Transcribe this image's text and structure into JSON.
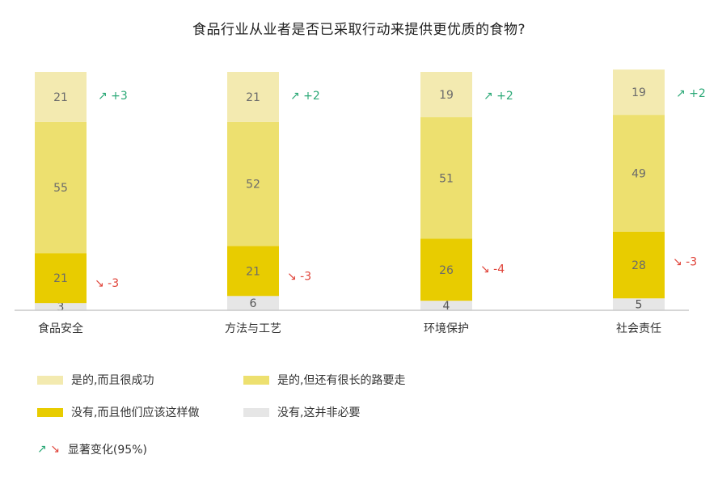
{
  "title": "食品行业从业者是否已采取行动来提供更优质的食物?",
  "colors": {
    "series": [
      "#f3eab0",
      "#ede06f",
      "#e8cc00",
      "#e6e6e6"
    ],
    "up": "#2aa876",
    "down": "#e0443a",
    "baseline": "#c8c8c8"
  },
  "chart_data": {
    "type": "bar",
    "stacked": true,
    "categories": [
      "食品安全",
      "方法与工艺",
      "环境保护",
      "社会责任"
    ],
    "series": [
      {
        "name": "是的,而且很成功",
        "values": [
          21,
          21,
          19,
          19
        ]
      },
      {
        "name": "是的,但还有很长的路要走",
        "values": [
          55,
          52,
          51,
          49
        ]
      },
      {
        "name": "没有,而且他们应该这样做",
        "values": [
          21,
          21,
          26,
          28
        ]
      },
      {
        "name": "没有,这并非必要",
        "values": [
          3,
          6,
          4,
          5
        ]
      }
    ],
    "changes": {
      "top": [
        {
          "label": "+3",
          "direction": "up"
        },
        {
          "label": "+2",
          "direction": "up"
        },
        {
          "label": "+2",
          "direction": "up"
        },
        {
          "label": "+2",
          "direction": "up"
        }
      ],
      "third": [
        {
          "label": "-3",
          "direction": "down"
        },
        {
          "label": "-3",
          "direction": "down"
        },
        {
          "label": "-4",
          "direction": "down"
        },
        {
          "label": "-3",
          "direction": "down"
        }
      ]
    },
    "ylim": [
      0,
      100
    ],
    "legend_position": "bottom-left"
  },
  "legend": {
    "items": [
      {
        "label": "是的,而且很成功"
      },
      {
        "label": "是的,但还有很长的路要走"
      },
      {
        "label": "没有,而且他们应该这样做"
      },
      {
        "label": "没有,这并非必要"
      }
    ],
    "significance": {
      "up_arrow": "↗",
      "down_arrow": "↘",
      "label": "显著变化(95%)"
    }
  }
}
